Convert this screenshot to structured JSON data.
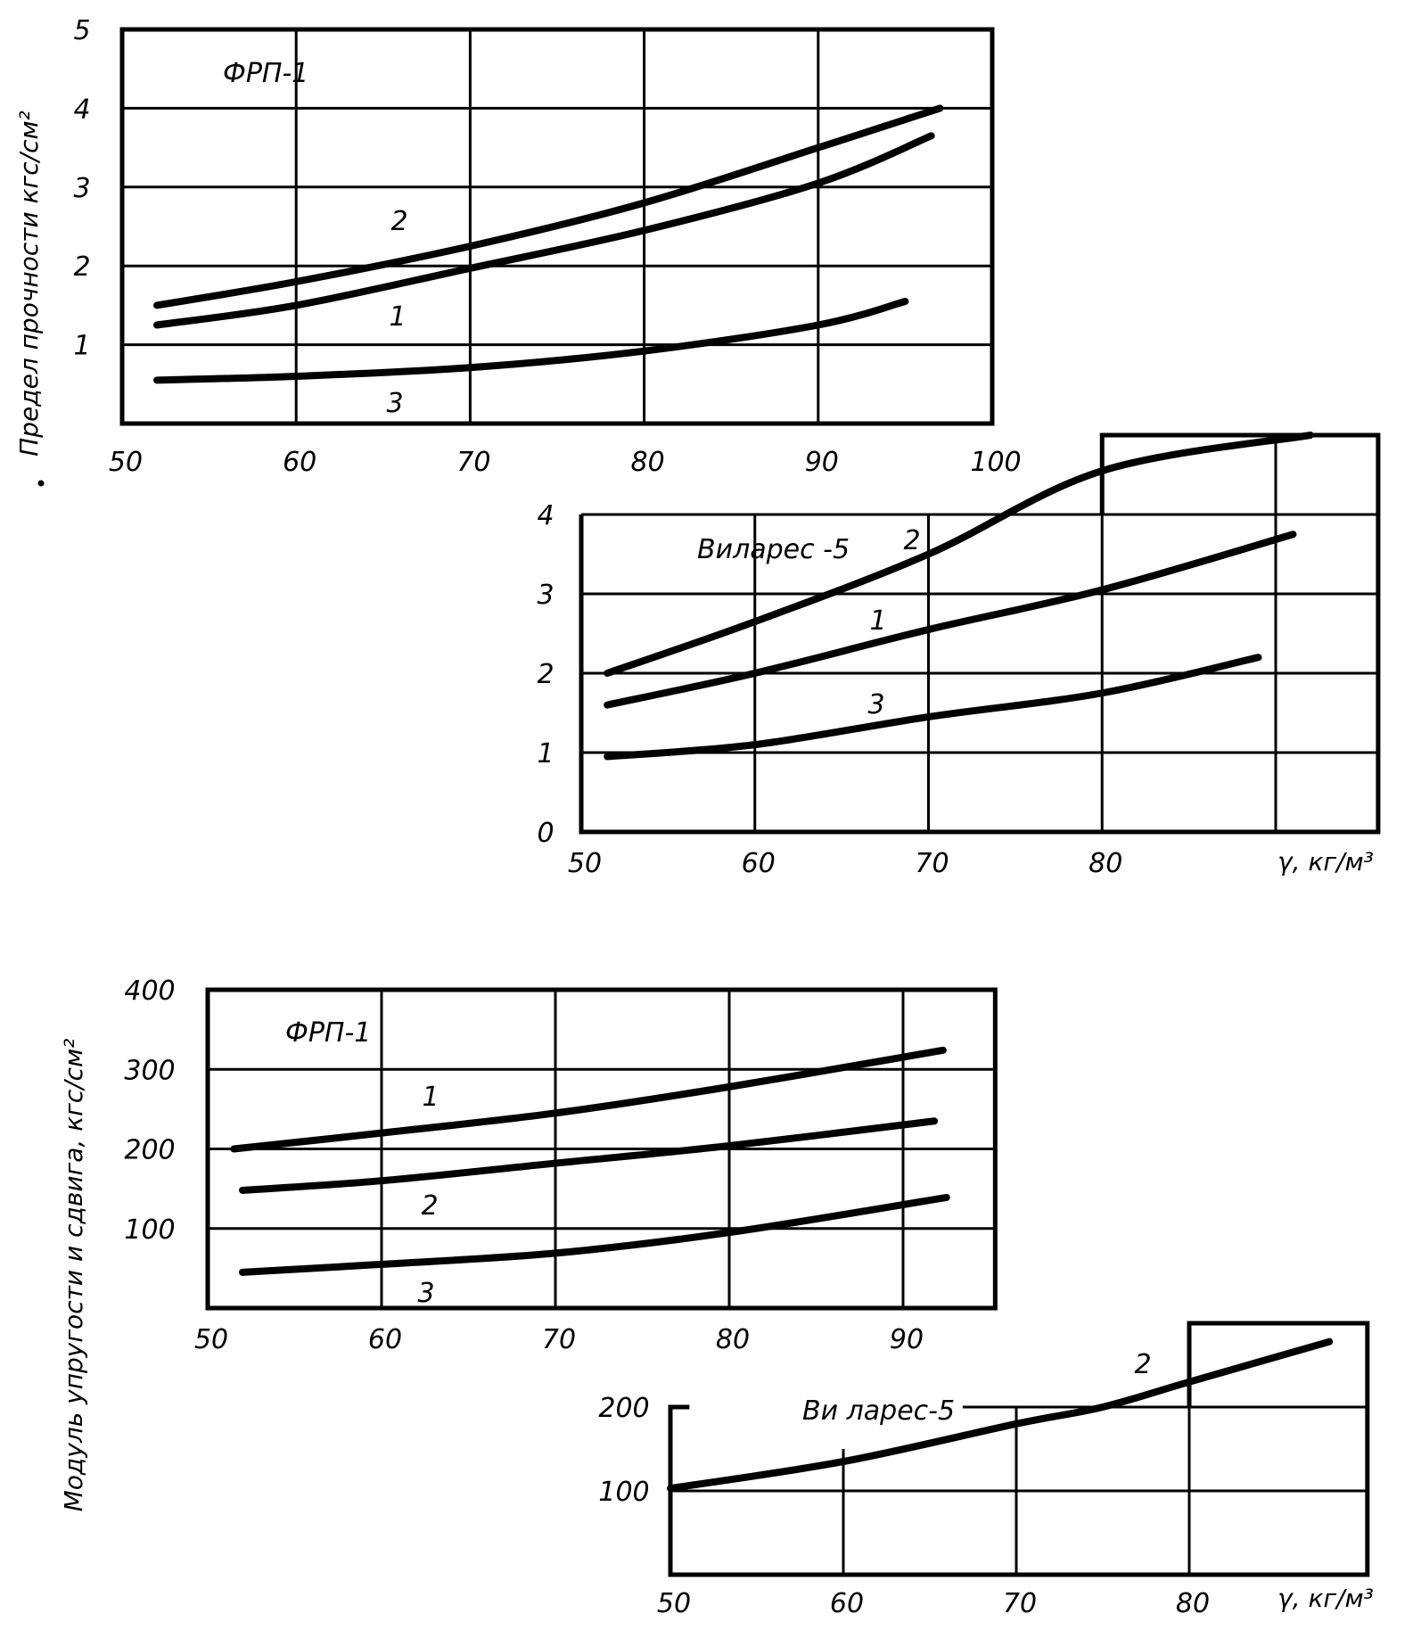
{
  "figure": {
    "y_label_top": "Предел прочности кгс/см²",
    "y_label_bottom": "Модуль упругости и сдвига, кгс/см²",
    "x_label": "γ, кг/м³",
    "ink_color": "#000000",
    "background": "#ffffff"
  },
  "chart_data": [
    {
      "id": "strength-frp",
      "type": "line",
      "title": "ФРП-1",
      "xlabel": "",
      "ylabel": "Предел прочности кгс/см²",
      "xlim": [
        50,
        100
      ],
      "ylim": [
        0,
        5
      ],
      "grid": true,
      "x_ticks": [
        "50",
        "60",
        "70",
        "80",
        "90",
        "100"
      ],
      "y_ticks": [
        "1",
        "2",
        "3",
        "4",
        "5"
      ],
      "series": [
        {
          "name": "1",
          "x": [
            52,
            60,
            70,
            80,
            90,
            96.5
          ],
          "y": [
            1.25,
            1.5,
            1.97,
            2.45,
            3.05,
            3.65
          ]
        },
        {
          "name": "2",
          "x": [
            52,
            60,
            70,
            80,
            90,
            97
          ],
          "y": [
            1.5,
            1.8,
            2.25,
            2.8,
            3.5,
            4.0
          ]
        },
        {
          "name": "3",
          "x": [
            52,
            60,
            70,
            80,
            90,
            95
          ],
          "y": [
            0.55,
            0.6,
            0.71,
            0.92,
            1.25,
            1.55
          ]
        }
      ]
    },
    {
      "id": "strength-vilares",
      "type": "line",
      "title": "Виларес -5",
      "xlabel": "γ, кг/м³",
      "ylabel": "Предел прочности кгс/см²",
      "xlim": [
        50,
        96
      ],
      "ylim": [
        0,
        5
      ],
      "grid": true,
      "x_ticks": [
        "50",
        "60",
        "70",
        "80"
      ],
      "y_ticks": [
        "0",
        "1",
        "2",
        "3",
        "4"
      ],
      "series": [
        {
          "name": "1",
          "x": [
            51.5,
            60,
            70,
            80,
            91
          ],
          "y": [
            1.6,
            2.0,
            2.55,
            3.05,
            3.75
          ]
        },
        {
          "name": "2",
          "x": [
            51.5,
            60,
            70,
            80,
            92
          ],
          "y": [
            2.0,
            2.65,
            3.5,
            4.55,
            5.0
          ]
        },
        {
          "name": "3",
          "x": [
            51.5,
            60,
            70,
            80,
            89
          ],
          "y": [
            0.95,
            1.1,
            1.45,
            1.75,
            2.2
          ]
        }
      ]
    },
    {
      "id": "modulus-frp",
      "type": "line",
      "title": "ФРП-1",
      "xlabel": "",
      "ylabel": "Модуль упругости и сдвига, кгс/см²",
      "xlim": [
        50,
        95.3
      ],
      "ylim": [
        0,
        400
      ],
      "grid": true,
      "x_ticks": [
        "50",
        "60",
        "70",
        "80",
        "90"
      ],
      "y_ticks": [
        "100",
        "200",
        "300",
        "400"
      ],
      "series": [
        {
          "name": "1",
          "x": [
            51.5,
            60,
            70,
            80,
            92.3
          ],
          "y": [
            200,
            220,
            245,
            278,
            324
          ]
        },
        {
          "name": "2",
          "x": [
            52,
            60,
            70,
            80,
            91.8
          ],
          "y": [
            148,
            160,
            182,
            204,
            235
          ]
        },
        {
          "name": "3",
          "x": [
            52,
            60,
            70,
            80,
            92.5
          ],
          "y": [
            45,
            55,
            69,
            95,
            139
          ]
        }
      ]
    },
    {
      "id": "modulus-vilares",
      "type": "line",
      "title": "Ви лapec-5",
      "xlabel": "γ, кг/м³",
      "ylabel": "Модуль упругости и сдвига, кгс/см²",
      "xlim": [
        50,
        90.3
      ],
      "ylim": [
        0,
        300
      ],
      "grid": true,
      "x_ticks": [
        "50",
        "60",
        "70",
        "80"
      ],
      "y_ticks": [
        "100",
        "200"
      ],
      "series": [
        {
          "name": "2",
          "x": [
            50,
            60,
            70,
            75,
            80,
            88.1
          ],
          "y": [
            103,
            135,
            180,
            200,
            230,
            278
          ]
        }
      ]
    }
  ]
}
